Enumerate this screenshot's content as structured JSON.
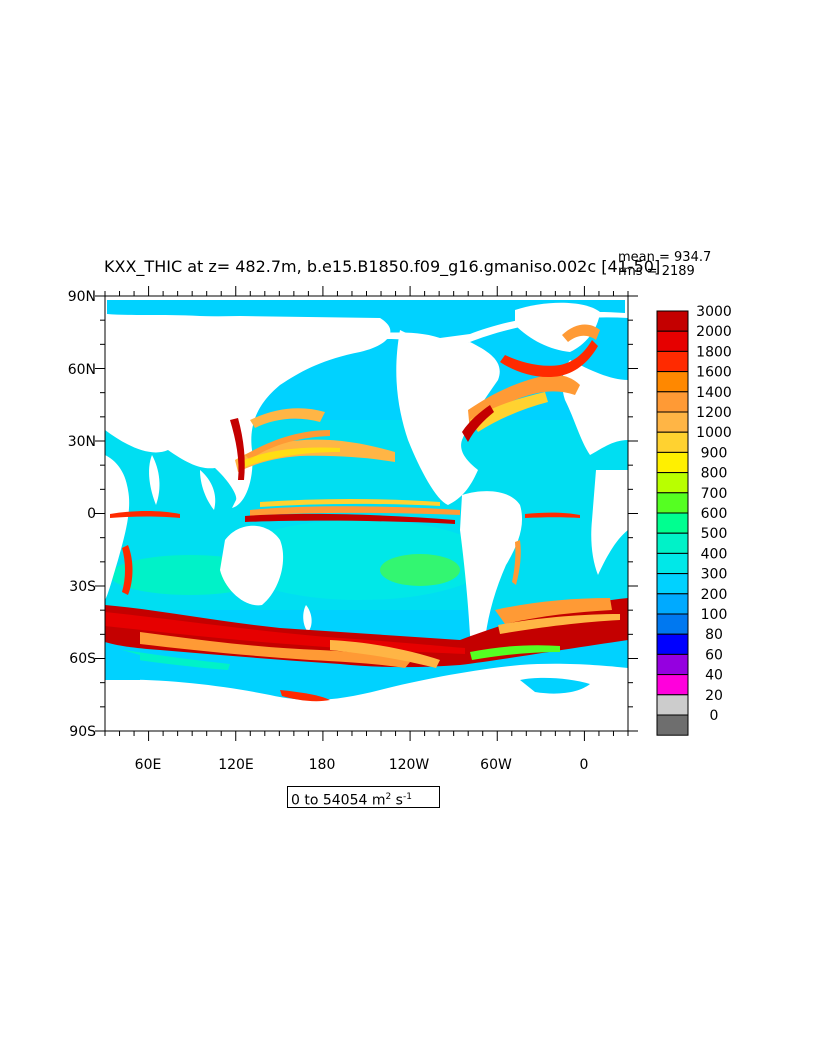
{
  "title": "KXX_THIC at z= 482.7m, b.e15.B1850.f09_g16.gmaniso.002c [41-50]",
  "stats": {
    "mean": "mean = 934.7",
    "rms": "rms = 2189"
  },
  "range": {
    "prefix": "0 to 54054 m",
    "exp1": "2",
    "mid": " s",
    "exp2": "-1"
  },
  "axes": {
    "lat_labels": [
      "90N",
      "60N",
      "30N",
      "0",
      "30S",
      "60S",
      "90S"
    ],
    "lon_labels": [
      "60E",
      "120E",
      "180",
      "120W",
      "60W",
      "0"
    ]
  },
  "colorbar": {
    "levels": [
      "3000",
      "2000",
      "1800",
      "1600",
      "1400",
      "1200",
      "1000",
      "900",
      "800",
      "700",
      "600",
      "500",
      "400",
      "300",
      "200",
      "100",
      "80",
      "60",
      "40",
      "20",
      "0"
    ],
    "colors": [
      "#c40000",
      "#e60000",
      "#ff2a00",
      "#ff8800",
      "#ff9a35",
      "#ffb545",
      "#ffd230",
      "#fff000",
      "#b9ff00",
      "#55ff22",
      "#00ff90",
      "#00f2c8",
      "#00e8e8",
      "#00d2ff",
      "#00aaff",
      "#0078f0",
      "#0000ff",
      "#9500e0",
      "#ff00dc",
      "#cccccc",
      "#6e6e6e"
    ]
  }
}
